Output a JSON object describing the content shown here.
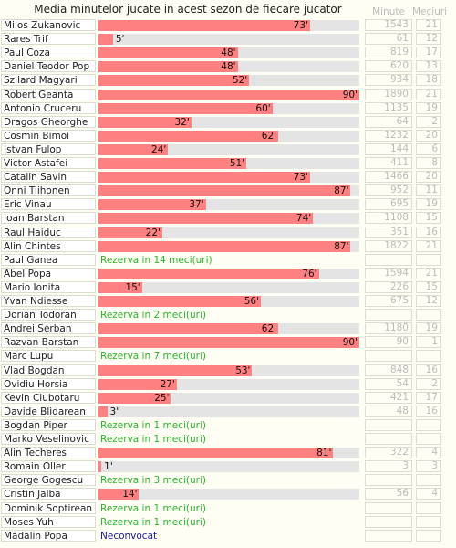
{
  "header": {
    "title": "Media minutelor jucate in acest sezon de fiecare jucator",
    "col_minutes": "Minute",
    "col_matches": "Meciuri"
  },
  "colors": {
    "bar": "#ff8080",
    "track": "#e4e4e4",
    "reserve": "#2bb52b",
    "not_called": "#1a1aa8"
  },
  "chart_data": {
    "type": "bar",
    "orientation": "horizontal",
    "xlim": [
      0,
      90
    ],
    "players": [
      {
        "name": "Milos Zukanovic",
        "avg": 73,
        "label": "73'",
        "minutes": "1543",
        "matches": "21"
      },
      {
        "name": "Rares Trif",
        "avg": 5,
        "label": "5'",
        "minutes": "61",
        "matches": "12"
      },
      {
        "name": "Paul Coza",
        "avg": 48,
        "label": "48'",
        "minutes": "819",
        "matches": "17"
      },
      {
        "name": "Daniel Teodor Pop",
        "avg": 48,
        "label": "48'",
        "minutes": "620",
        "matches": "13"
      },
      {
        "name": "Szilard Magyari",
        "avg": 52,
        "label": "52'",
        "minutes": "934",
        "matches": "18"
      },
      {
        "name": "Robert Geanta",
        "avg": 90,
        "label": "90'",
        "minutes": "1890",
        "matches": "21"
      },
      {
        "name": "Antonio Cruceru",
        "avg": 60,
        "label": "60'",
        "minutes": "1135",
        "matches": "19"
      },
      {
        "name": "Dragos Gheorghe",
        "avg": 32,
        "label": "32'",
        "minutes": "64",
        "matches": "2"
      },
      {
        "name": "Cosmin Bimoi",
        "avg": 62,
        "label": "62'",
        "minutes": "1232",
        "matches": "20"
      },
      {
        "name": "Istvan Fulop",
        "avg": 24,
        "label": "24'",
        "minutes": "144",
        "matches": "6"
      },
      {
        "name": "Victor Astafei",
        "avg": 51,
        "label": "51'",
        "minutes": "411",
        "matches": "8"
      },
      {
        "name": "Catalin Savin",
        "avg": 73,
        "label": "73'",
        "minutes": "1466",
        "matches": "20"
      },
      {
        "name": "Onni Tiihonen",
        "avg": 87,
        "label": "87'",
        "minutes": "952",
        "matches": "11"
      },
      {
        "name": "Eric Vinau",
        "avg": 37,
        "label": "37'",
        "minutes": "695",
        "matches": "19"
      },
      {
        "name": "Ioan Barstan",
        "avg": 74,
        "label": "74'",
        "minutes": "1108",
        "matches": "15"
      },
      {
        "name": "Raul Haiduc",
        "avg": 22,
        "label": "22'",
        "minutes": "351",
        "matches": "16"
      },
      {
        "name": "Alin Chintes",
        "avg": 87,
        "label": "87'",
        "minutes": "1822",
        "matches": "21"
      },
      {
        "name": "Paul Ganea",
        "avg": null,
        "note": "Rezerva in 14 meci(uri)",
        "note_type": "reserve",
        "minutes": "",
        "matches": ""
      },
      {
        "name": "Abel Popa",
        "avg": 76,
        "label": "76'",
        "minutes": "1594",
        "matches": "21"
      },
      {
        "name": "Mario Ionita",
        "avg": 15,
        "label": "15'",
        "minutes": "226",
        "matches": "15"
      },
      {
        "name": "Yvan Ndiesse",
        "avg": 56,
        "label": "56'",
        "minutes": "675",
        "matches": "12"
      },
      {
        "name": "Dorian Todoran",
        "avg": null,
        "note": "Rezerva in 2 meci(uri)",
        "note_type": "reserve",
        "minutes": "",
        "matches": ""
      },
      {
        "name": "Andrei Serban",
        "avg": 62,
        "label": "62'",
        "minutes": "1180",
        "matches": "19"
      },
      {
        "name": "Razvan Barstan",
        "avg": 90,
        "label": "90'",
        "minutes": "90",
        "matches": "1"
      },
      {
        "name": "Marc Lupu",
        "avg": null,
        "note": "Rezerva in 7 meci(uri)",
        "note_type": "reserve",
        "minutes": "",
        "matches": ""
      },
      {
        "name": "Vlad Bogdan",
        "avg": 53,
        "label": "53'",
        "minutes": "848",
        "matches": "16"
      },
      {
        "name": "Ovidiu Horsia",
        "avg": 27,
        "label": "27'",
        "minutes": "54",
        "matches": "2"
      },
      {
        "name": "Kevin Ciubotaru",
        "avg": 25,
        "label": "25'",
        "minutes": "421",
        "matches": "17"
      },
      {
        "name": "Davide Blidarean",
        "avg": 3,
        "label": "3'",
        "minutes": "48",
        "matches": "16"
      },
      {
        "name": "Bogdan Piper",
        "avg": null,
        "note": "Rezerva in 1 meci(uri)",
        "note_type": "reserve",
        "minutes": "",
        "matches": ""
      },
      {
        "name": "Marko Veselinovic",
        "avg": null,
        "note": "Rezerva in 1 meci(uri)",
        "note_type": "reserve",
        "minutes": "",
        "matches": ""
      },
      {
        "name": "Alin Techeres",
        "avg": 81,
        "label": "81'",
        "minutes": "322",
        "matches": "4"
      },
      {
        "name": "Romain Oller",
        "avg": 1,
        "label": "1'",
        "minutes": "3",
        "matches": "3"
      },
      {
        "name": "George Gogescu",
        "avg": null,
        "note": "Rezerva in 3 meci(uri)",
        "note_type": "reserve",
        "minutes": "",
        "matches": ""
      },
      {
        "name": "Cristin Jalba",
        "avg": 14,
        "label": "14'",
        "minutes": "56",
        "matches": "4"
      },
      {
        "name": "Dominik Soptirean",
        "avg": null,
        "note": "Rezerva in 1 meci(uri)",
        "note_type": "reserve",
        "minutes": "",
        "matches": ""
      },
      {
        "name": "Moses Yuh",
        "avg": null,
        "note": "Rezerva in 1 meci(uri)",
        "note_type": "reserve",
        "minutes": "",
        "matches": ""
      },
      {
        "name": "Mădălin Popa",
        "avg": null,
        "note": "Neconvocat",
        "note_type": "not_called",
        "minutes": "",
        "matches": ""
      }
    ]
  }
}
